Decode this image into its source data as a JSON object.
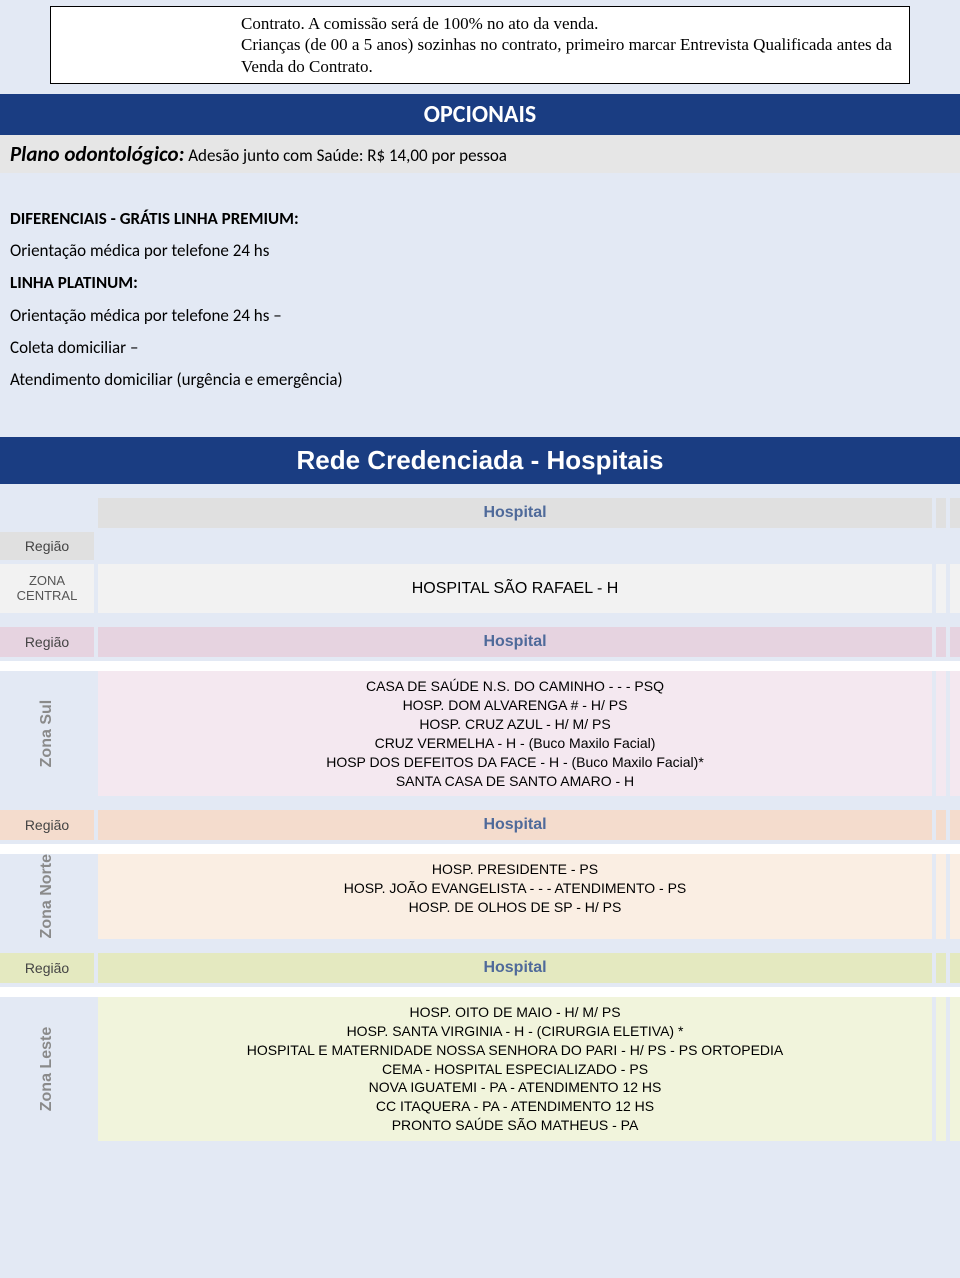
{
  "topNote": {
    "line1": "Contrato. A comissão será de 100% no ato da venda.",
    "line2": "Crianças (de 00 a 5 anos) sozinhas no contrato, primeiro marcar Entrevista Qualificada antes da Venda do Contrato."
  },
  "opcionais": {
    "barTitle": "OPCIONAIS",
    "planoLabel": "Plano odontológico:",
    "planoText": " Adesão junto com Saúde:  R$ 14,00 por pessoa"
  },
  "diferenciais": {
    "title": "DIFERENCIAIS - GRÁTIS LINHA PREMIUM:",
    "item1": "Orientação médica por telefone 24 hs",
    "subTitle": "LINHA PLATINUM:",
    "item2": "Orientação médica por telefone 24 hs –",
    "item3": "Coleta domiciliar –",
    "item4": " Atendimento domiciliar (urgência e emergência)"
  },
  "redeTitle": "Rede Credenciada - Hospitais",
  "labels": {
    "regiao": "Região",
    "hospital": "Hospital"
  },
  "zonaCentral": {
    "region": "ZONA CENTRAL",
    "hospitals": [
      "HOSPITAL SÃO RAFAEL - H"
    ]
  },
  "zonaSul": {
    "region": "Zona Sul",
    "hospitals": [
      "CASA DE SAÚDE N.S. DO CAMINHO - - - PSQ",
      "HOSP. DOM ALVARENGA # - H/ PS",
      "HOSP. CRUZ AZUL - H/ M/ PS",
      "CRUZ VERMELHA - H - (Buco Maxilo Facial)",
      "HOSP DOS DEFEITOS DA FACE - H - (Buco Maxilo Facial)*",
      "SANTA CASA DE SANTO AMARO - H"
    ]
  },
  "zonaNorte": {
    "region": "Zona Norte",
    "hospitals": [
      "HOSP. PRESIDENTE - PS",
      "HOSP. JOÃO EVANGELISTA - - - ATENDIMENTO - PS",
      "HOSP. DE OLHOS DE SP - H/ PS"
    ]
  },
  "zonaLeste": {
    "region": "Zona Leste",
    "hospitals": [
      "HOSP. OITO DE MAIO - H/ M/ PS",
      "HOSP. SANTA VIRGINIA - H - (CIRURGIA ELETIVA) *",
      "HOSPITAL E MATERNIDADE NOSSA SENHORA DO PARI - H/ PS - PS ORTOPEDIA",
      "CEMA - HOSPITAL ESPECIALIZADO - PS",
      "NOVA IGUATEMI - PA - ATENDIMENTO 12 HS",
      "CC ITAQUERA - PA - ATENDIMENTO 12 HS",
      "PRONTO SAÚDE SÃO MATHEUS - PA"
    ]
  },
  "colors": {
    "pageBg": "#e3e9f4",
    "blueBar": "#1a3d82",
    "grayTint": "#e0e0e0",
    "grayBody": "#f2f2f2",
    "pinkTint": "#e6d3e0",
    "pinkBody": "#f4e8f0",
    "orangeTint": "#f4dccd",
    "orangeBody": "#faeee3",
    "greenTint": "#e4e9c0",
    "greenBody": "#f1f4dc",
    "labelBlue": "#4f6a9a"
  }
}
